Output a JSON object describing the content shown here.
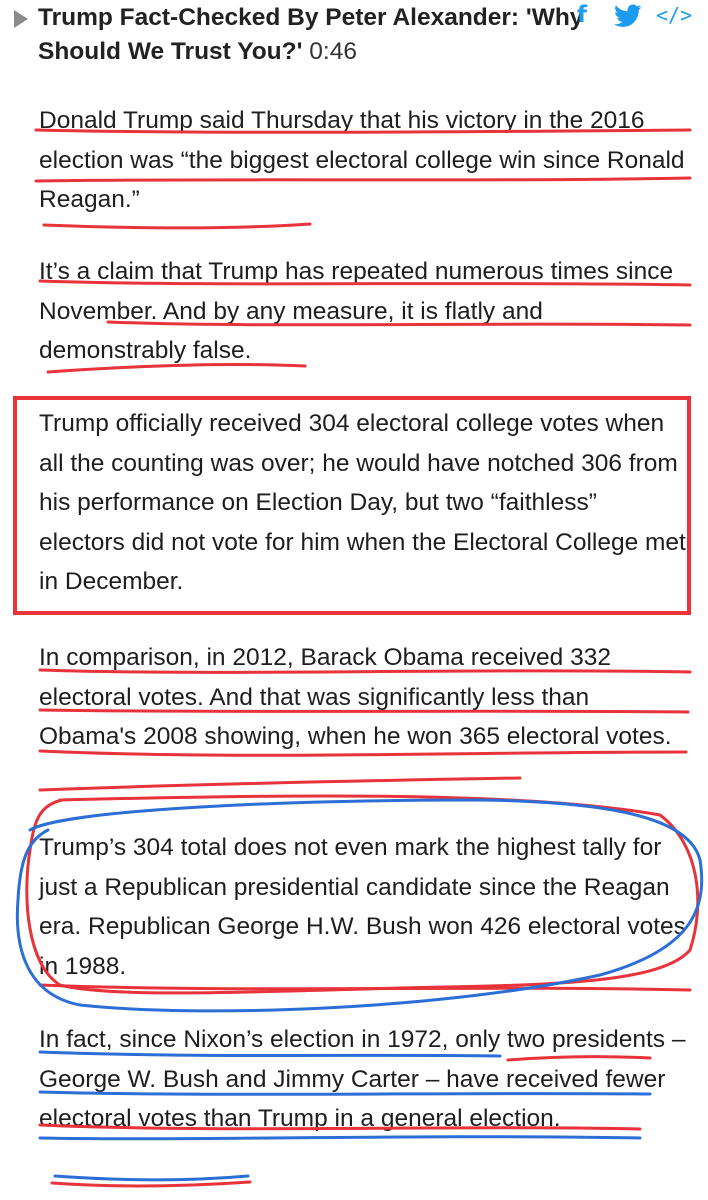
{
  "header": {
    "title": "Trump Fact-Checked By Peter Alexander: 'Why Should We Trust You?'",
    "duration": "0:46",
    "share": {
      "facebook_glyph": "f",
      "twitter_glyph": "🐦",
      "embed_glyph": "</>",
      "icons": [
        "play-icon",
        "facebook-icon",
        "twitter-icon",
        "embed-icon"
      ]
    }
  },
  "article": {
    "paragraphs": [
      "Donald Trump said Thursday that his victory in the 2016 election was “the biggest electoral college win since Ronald Reagan.”",
      "It’s a claim that Trump has repeated numerous times since November. And by any measure, it is flatly and demonstrably false.",
      "Trump officially received 304 electoral college votes when all the counting was over; he would have notched 306 from his performance on Election Day, but two “faithless” electors did not vote for him when the Electoral College met in December.",
      "In comparison, in 2012, Barack Obama received 332 electoral votes. And that was significantly less than Obama's 2008 showing, when he won 365 electoral votes.",
      "Trump’s 304 total does not even mark the highest tally for just a Republican presidential candidate since the Reagan era. Republican George H.W. Bush won 426 electoral votes in 1988.",
      "In fact, since Nixon’s election in 1972, only two presidents – George W. Bush and Jimmy Carter – have received fewer electoral votes than Trump in a general election."
    ]
  },
  "colors": {
    "red_ink": "#e8333a",
    "blue_ink": "#2b6fd6",
    "share_blue": "#1d9bf0"
  }
}
